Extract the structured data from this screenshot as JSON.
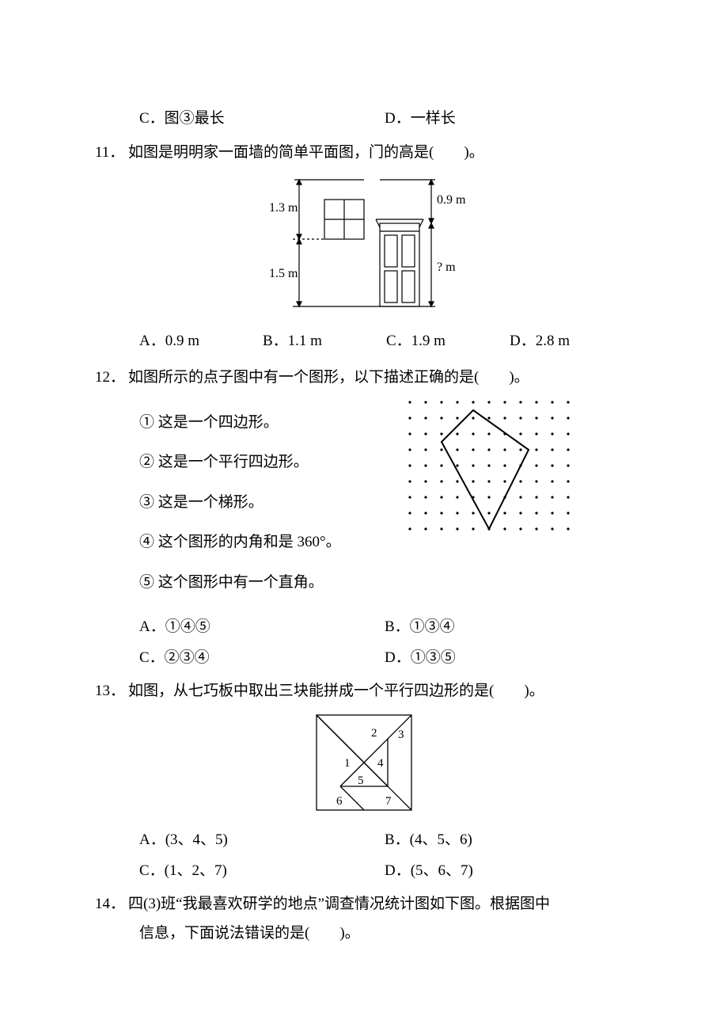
{
  "q10": {
    "optC": "C．图③最长",
    "optD": "D．一样长"
  },
  "q11": {
    "num": "11．",
    "stem": "如图是明明家一面墙的简单平面图，门的高是(　　)。",
    "optA": "A．0.9 m",
    "optB": "B．1.1 m",
    "optC": "C．1.9 m",
    "optD": "D．2.8 m",
    "fig": {
      "label_13": "1.3 m",
      "label_15": "1.5 m",
      "label_09": "0.9 m",
      "label_qm": "? m"
    }
  },
  "q12": {
    "num": "12．",
    "stem": "如图所示的点子图中有一个图形，以下描述正确的是(　　)。",
    "items": {
      "i1": "① 这是一个四边形。",
      "i2": "② 这是一个平行四边形。",
      "i3": "③ 这是一个梯形。",
      "i4": "④ 这个图形的内角和是 360°。",
      "i5": "⑤ 这个图形中有一个直角。"
    },
    "optA": "A．①④⑤",
    "optB": "B．①③④",
    "optC": "C．②③④",
    "optD": "D．①③⑤",
    "dotgrid": {
      "rows": 9,
      "cols": 11,
      "spacing": 20,
      "kite": [
        [
          4,
          0.5
        ],
        [
          7.5,
          3
        ],
        [
          5,
          8
        ],
        [
          2,
          2.5
        ]
      ]
    }
  },
  "q13": {
    "num": "13．",
    "stem": "如图，从七巧板中取出三块能拼成一个平行四边形的是(　　)。",
    "optA": "A．(3、4、5)",
    "optB": "B．(4、5、6)",
    "optC": "C．(1、2、7)",
    "optD": "D．(5、6、7)",
    "labels": {
      "l1": "1",
      "l2": "2",
      "l3": "3",
      "l4": "4",
      "l5": "5",
      "l6": "6",
      "l7": "7"
    }
  },
  "q14": {
    "num": "14．",
    "stem1": "四(3)班“我最喜欢研学的地点”调查情况统计图如下图。根据图中",
    "stem2": "信息，下面说法错误的是(　　)。"
  }
}
